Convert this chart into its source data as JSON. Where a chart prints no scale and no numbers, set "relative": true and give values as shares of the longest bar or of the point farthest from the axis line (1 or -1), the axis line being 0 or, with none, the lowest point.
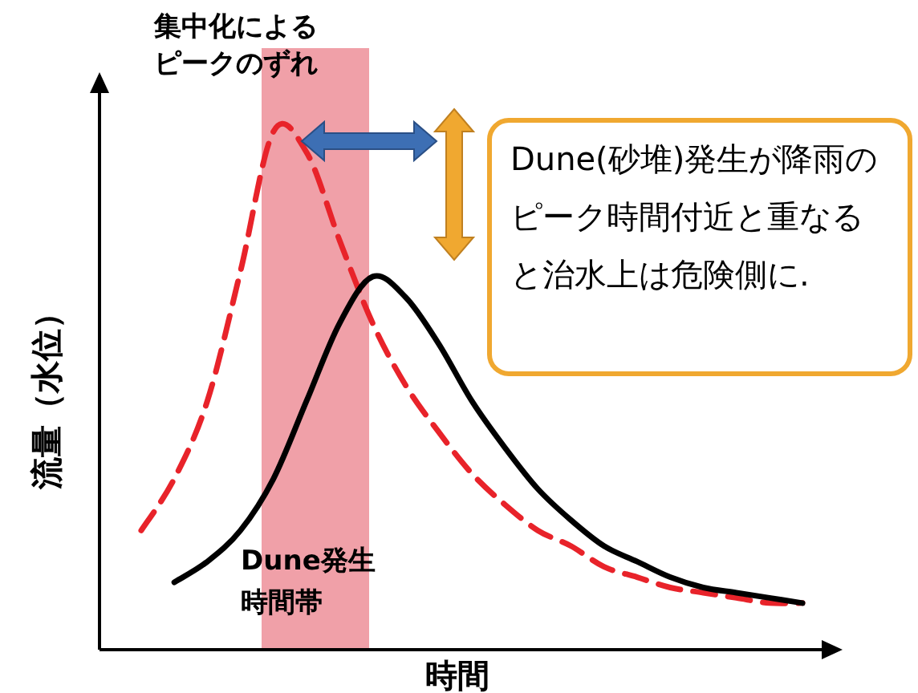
{
  "chart_data": {
    "type": "line",
    "relative": true,
    "categories": [
      null,
      null,
      null,
      null,
      null,
      null,
      null,
      null,
      null,
      null,
      null,
      null,
      null,
      null,
      null,
      null,
      null,
      null,
      null,
      null,
      null
    ],
    "series": [
      {
        "color": "#e8232a",
        "line_style": "dashed",
        "values": [
          0.23,
          0.33,
          0.48,
          0.73,
          1,
          0.96,
          0.79,
          0.63,
          0.51,
          0.42,
          0.34,
          0.28,
          0.23,
          0.2,
          0.16,
          0.14,
          0.12,
          0.11,
          0.1,
          0.09,
          0.09
        ]
      },
      {
        "color": "#000000",
        "line_style": "solid",
        "values": [
          null,
          0.13,
          0.17,
          0.23,
          0.33,
          0.48,
          0.63,
          0.72,
          0.68,
          0.59,
          0.48,
          0.39,
          0.31,
          0.25,
          0.2,
          0.17,
          0.14,
          0.12,
          0.11,
          0.1,
          0.09
        ]
      }
    ],
    "xlabel": "時間",
    "ylabel": "流量（水位）",
    "annotations": [
      "集中化によるピークのずれ",
      "Dune(砂堆)発生が降雨のピーク時間付近と重なると治水上は危険側に.",
      "Dune発生時間帯"
    ]
  }
}
